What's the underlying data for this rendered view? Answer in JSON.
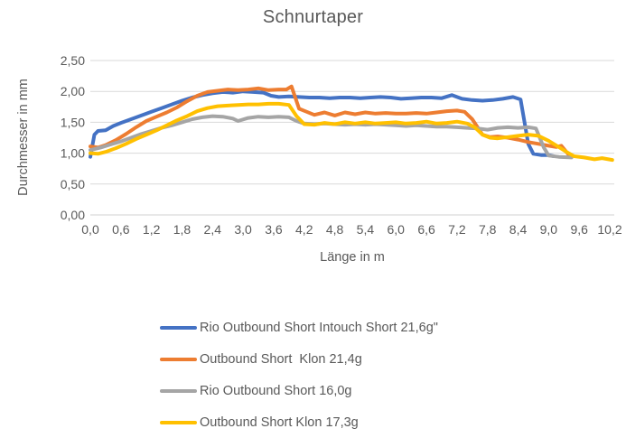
{
  "title": "Schnurtaper",
  "colors": {
    "text": "#595959",
    "grid": "#d9d9d9",
    "axis": "#d0d0d0",
    "series_blue": "#4472c4",
    "series_orange": "#ed7d31",
    "series_gray": "#a5a5a5",
    "series_yellow": "#ffc000"
  },
  "chart_data": {
    "type": "line",
    "title": "Schnurtaper",
    "xlabel": "Länge in m",
    "ylabel": "Durchmesser in mm",
    "xlim": [
      0,
      10.45
    ],
    "ylim": [
      0,
      2.5
    ],
    "grid": "horizontal",
    "legend_position": "bottom-left",
    "x_tick_labels": [
      "0,0",
      "0,6",
      "1,2",
      "1,8",
      "2,4",
      "3,0",
      "3,6",
      "4,2",
      "4,8",
      "5,4",
      "6,0",
      "6,6",
      "7,2",
      "7,8",
      "8,4",
      "9,0",
      "9,6",
      "10,2"
    ],
    "x_tick_values": [
      0,
      0.6,
      1.2,
      1.8,
      2.4,
      3.0,
      3.6,
      4.2,
      4.8,
      5.4,
      6.0,
      6.6,
      7.2,
      7.8,
      8.4,
      9.0,
      9.6,
      10.2
    ],
    "y_tick_labels": [
      "0,00",
      "0,50",
      "1,00",
      "1,50",
      "2,00",
      "2,50"
    ],
    "y_tick_values": [
      0,
      0.5,
      1.0,
      1.5,
      2.0,
      2.5
    ],
    "series": [
      {
        "name": "Rio Outbound Short Intouch Short 21,6g\"",
        "color": "#4472c4",
        "points": [
          [
            0.0,
            0.94
          ],
          [
            0.08,
            1.3
          ],
          [
            0.15,
            1.36
          ],
          [
            0.3,
            1.37
          ],
          [
            0.45,
            1.44
          ],
          [
            0.6,
            1.49
          ],
          [
            0.8,
            1.55
          ],
          [
            1.0,
            1.61
          ],
          [
            1.2,
            1.67
          ],
          [
            1.4,
            1.73
          ],
          [
            1.6,
            1.79
          ],
          [
            1.8,
            1.85
          ],
          [
            2.0,
            1.9
          ],
          [
            2.2,
            1.94
          ],
          [
            2.4,
            1.97
          ],
          [
            2.6,
            1.99
          ],
          [
            2.8,
            1.98
          ],
          [
            3.0,
            2.0
          ],
          [
            3.2,
            1.99
          ],
          [
            3.4,
            1.98
          ],
          [
            3.55,
            1.93
          ],
          [
            3.7,
            1.91
          ],
          [
            3.9,
            1.92
          ],
          [
            4.1,
            1.91
          ],
          [
            4.3,
            1.9
          ],
          [
            4.5,
            1.9
          ],
          [
            4.7,
            1.89
          ],
          [
            4.9,
            1.9
          ],
          [
            5.1,
            1.9
          ],
          [
            5.3,
            1.89
          ],
          [
            5.5,
            1.9
          ],
          [
            5.7,
            1.91
          ],
          [
            5.9,
            1.9
          ],
          [
            6.1,
            1.88
          ],
          [
            6.3,
            1.89
          ],
          [
            6.5,
            1.9
          ],
          [
            6.7,
            1.9
          ],
          [
            6.9,
            1.89
          ],
          [
            7.1,
            1.94
          ],
          [
            7.3,
            1.88
          ],
          [
            7.5,
            1.86
          ],
          [
            7.7,
            1.85
          ],
          [
            7.9,
            1.86
          ],
          [
            8.1,
            1.88
          ],
          [
            8.3,
            1.91
          ],
          [
            8.45,
            1.87
          ],
          [
            8.6,
            1.15
          ],
          [
            8.7,
            0.99
          ],
          [
            8.85,
            0.97
          ],
          [
            9.0,
            0.97
          ],
          [
            9.1,
            0.95
          ]
        ]
      },
      {
        "name": "Outbound Short  Klon 21,4g",
        "color": "#ed7d31",
        "points": [
          [
            0.0,
            1.11
          ],
          [
            0.15,
            1.09
          ],
          [
            0.3,
            1.13
          ],
          [
            0.5,
            1.21
          ],
          [
            0.7,
            1.31
          ],
          [
            0.9,
            1.42
          ],
          [
            1.1,
            1.52
          ],
          [
            1.3,
            1.59
          ],
          [
            1.5,
            1.66
          ],
          [
            1.7,
            1.74
          ],
          [
            1.9,
            1.84
          ],
          [
            2.1,
            1.93
          ],
          [
            2.3,
            1.99
          ],
          [
            2.5,
            2.01
          ],
          [
            2.7,
            2.03
          ],
          [
            2.9,
            2.02
          ],
          [
            3.1,
            2.03
          ],
          [
            3.3,
            2.05
          ],
          [
            3.5,
            2.02
          ],
          [
            3.7,
            2.03
          ],
          [
            3.85,
            2.03
          ],
          [
            3.95,
            2.08
          ],
          [
            4.1,
            1.72
          ],
          [
            4.25,
            1.67
          ],
          [
            4.4,
            1.62
          ],
          [
            4.6,
            1.66
          ],
          [
            4.8,
            1.61
          ],
          [
            5.0,
            1.66
          ],
          [
            5.2,
            1.63
          ],
          [
            5.4,
            1.66
          ],
          [
            5.6,
            1.64
          ],
          [
            5.8,
            1.65
          ],
          [
            6.0,
            1.64
          ],
          [
            6.2,
            1.64
          ],
          [
            6.4,
            1.65
          ],
          [
            6.6,
            1.64
          ],
          [
            6.8,
            1.66
          ],
          [
            7.0,
            1.68
          ],
          [
            7.2,
            1.69
          ],
          [
            7.35,
            1.67
          ],
          [
            7.5,
            1.55
          ],
          [
            7.7,
            1.3
          ],
          [
            7.85,
            1.26
          ],
          [
            8.0,
            1.27
          ],
          [
            8.2,
            1.25
          ],
          [
            8.4,
            1.22
          ],
          [
            8.6,
            1.18
          ],
          [
            8.8,
            1.15
          ],
          [
            9.0,
            1.12
          ],
          [
            9.15,
            1.1
          ],
          [
            9.25,
            1.12
          ],
          [
            9.4,
            0.97
          ]
        ]
      },
      {
        "name": "Rio Outbound Short 16,0g",
        "color": "#a5a5a5",
        "points": [
          [
            0.0,
            1.05
          ],
          [
            0.2,
            1.09
          ],
          [
            0.4,
            1.14
          ],
          [
            0.6,
            1.19
          ],
          [
            0.8,
            1.25
          ],
          [
            1.0,
            1.31
          ],
          [
            1.2,
            1.36
          ],
          [
            1.4,
            1.41
          ],
          [
            1.6,
            1.45
          ],
          [
            1.8,
            1.5
          ],
          [
            2.0,
            1.55
          ],
          [
            2.2,
            1.58
          ],
          [
            2.4,
            1.6
          ],
          [
            2.6,
            1.59
          ],
          [
            2.8,
            1.56
          ],
          [
            2.9,
            1.52
          ],
          [
            3.1,
            1.57
          ],
          [
            3.3,
            1.59
          ],
          [
            3.5,
            1.58
          ],
          [
            3.7,
            1.59
          ],
          [
            3.9,
            1.58
          ],
          [
            4.05,
            1.52
          ],
          [
            4.2,
            1.48
          ],
          [
            4.4,
            1.47
          ],
          [
            4.6,
            1.48
          ],
          [
            4.8,
            1.47
          ],
          [
            5.0,
            1.46
          ],
          [
            5.2,
            1.47
          ],
          [
            5.4,
            1.46
          ],
          [
            5.6,
            1.47
          ],
          [
            5.8,
            1.46
          ],
          [
            6.0,
            1.45
          ],
          [
            6.2,
            1.44
          ],
          [
            6.4,
            1.45
          ],
          [
            6.6,
            1.44
          ],
          [
            6.8,
            1.43
          ],
          [
            7.0,
            1.43
          ],
          [
            7.2,
            1.42
          ],
          [
            7.4,
            1.41
          ],
          [
            7.6,
            1.4
          ],
          [
            7.8,
            1.38
          ],
          [
            8.0,
            1.41
          ],
          [
            8.2,
            1.42
          ],
          [
            8.4,
            1.41
          ],
          [
            8.6,
            1.42
          ],
          [
            8.75,
            1.4
          ],
          [
            8.9,
            1.1
          ],
          [
            9.0,
            0.96
          ],
          [
            9.2,
            0.94
          ],
          [
            9.45,
            0.93
          ]
        ]
      },
      {
        "name": "Outbound Short Klon 17,3g",
        "color": "#ffc000",
        "points": [
          [
            0.0,
            1.0
          ],
          [
            0.15,
            0.99
          ],
          [
            0.3,
            1.02
          ],
          [
            0.5,
            1.08
          ],
          [
            0.7,
            1.15
          ],
          [
            0.9,
            1.23
          ],
          [
            1.1,
            1.3
          ],
          [
            1.3,
            1.37
          ],
          [
            1.5,
            1.45
          ],
          [
            1.7,
            1.53
          ],
          [
            1.9,
            1.6
          ],
          [
            2.1,
            1.68
          ],
          [
            2.3,
            1.73
          ],
          [
            2.5,
            1.76
          ],
          [
            2.7,
            1.77
          ],
          [
            2.9,
            1.78
          ],
          [
            3.1,
            1.79
          ],
          [
            3.3,
            1.79
          ],
          [
            3.5,
            1.8
          ],
          [
            3.7,
            1.8
          ],
          [
            3.9,
            1.78
          ],
          [
            4.05,
            1.6
          ],
          [
            4.2,
            1.47
          ],
          [
            4.4,
            1.46
          ],
          [
            4.6,
            1.49
          ],
          [
            4.8,
            1.47
          ],
          [
            5.0,
            1.5
          ],
          [
            5.2,
            1.48
          ],
          [
            5.4,
            1.5
          ],
          [
            5.6,
            1.48
          ],
          [
            5.8,
            1.49
          ],
          [
            6.0,
            1.5
          ],
          [
            6.2,
            1.48
          ],
          [
            6.4,
            1.49
          ],
          [
            6.6,
            1.51
          ],
          [
            6.8,
            1.48
          ],
          [
            7.0,
            1.49
          ],
          [
            7.2,
            1.51
          ],
          [
            7.4,
            1.48
          ],
          [
            7.55,
            1.42
          ],
          [
            7.7,
            1.3
          ],
          [
            7.85,
            1.25
          ],
          [
            8.0,
            1.24
          ],
          [
            8.2,
            1.26
          ],
          [
            8.4,
            1.28
          ],
          [
            8.6,
            1.3
          ],
          [
            8.8,
            1.28
          ],
          [
            9.0,
            1.2
          ],
          [
            9.2,
            1.1
          ],
          [
            9.35,
            1.02
          ],
          [
            9.5,
            0.95
          ],
          [
            9.7,
            0.93
          ],
          [
            9.9,
            0.9
          ],
          [
            10.05,
            0.92
          ],
          [
            10.25,
            0.89
          ]
        ]
      }
    ]
  }
}
